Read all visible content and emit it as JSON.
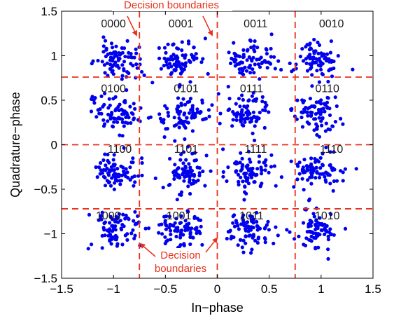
{
  "chart_data": {
    "type": "scatter",
    "xlabel": "In−phase",
    "ylabel": "Quadrature−phase",
    "xlim": [
      -1.5,
      1.5
    ],
    "ylim": [
      -1.5,
      1.5
    ],
    "xticks": [
      -1.5,
      -1,
      -0.5,
      0,
      0.5,
      1,
      1.5
    ],
    "xtick_labels": [
      "−1.5",
      "−1",
      "−0.5",
      "0",
      "0.5",
      "1",
      "1.5"
    ],
    "yticks": [
      -1.5,
      -1,
      -0.5,
      0,
      0.5,
      1,
      1.5
    ],
    "ytick_labels": [
      "−1.5",
      "−1",
      "−0.5",
      "0",
      "0.5",
      "1",
      "1.5"
    ],
    "grid": false,
    "marker_color": "#0000ee",
    "boundary_color": "#e8301c",
    "decision_boundaries": {
      "vertical": [
        -0.75,
        0,
        0.75
      ],
      "horizontal": [
        -0.72,
        0,
        0.76
      ]
    },
    "symbol_spread": 0.11,
    "points_per_symbol": 80,
    "symbols": [
      {
        "label": "0000",
        "i": -0.95,
        "q": 0.95,
        "label_x": -1.0,
        "label_y": 1.32
      },
      {
        "label": "0001",
        "i": -0.35,
        "q": 0.95,
        "label_x": -0.35,
        "label_y": 1.32
      },
      {
        "label": "0011",
        "i": 0.32,
        "q": 0.95,
        "label_x": 0.37,
        "label_y": 1.32
      },
      {
        "label": "0010",
        "i": 0.97,
        "q": 0.95,
        "label_x": 1.1,
        "label_y": 1.32
      },
      {
        "label": "0100",
        "i": -0.97,
        "q": 0.35,
        "label_x": -1.0,
        "label_y": 0.59
      },
      {
        "label": "0101",
        "i": -0.3,
        "q": 0.35,
        "label_x": -0.3,
        "label_y": 0.59
      },
      {
        "label": "0111",
        "i": 0.28,
        "q": 0.35,
        "label_x": 0.33,
        "label_y": 0.59
      },
      {
        "label": "0110",
        "i": 0.97,
        "q": 0.35,
        "label_x": 1.06,
        "label_y": 0.59
      },
      {
        "label": "1100",
        "i": -0.97,
        "q": -0.3,
        "label_x": -0.94,
        "label_y": -0.09
      },
      {
        "label": "1101",
        "i": -0.3,
        "q": -0.3,
        "label_x": -0.3,
        "label_y": -0.09
      },
      {
        "label": "1111",
        "i": 0.3,
        "q": -0.3,
        "label_x": 0.37,
        "label_y": -0.09
      },
      {
        "label": "1110",
        "i": 0.97,
        "q": -0.3,
        "label_x": 1.1,
        "label_y": -0.09
      },
      {
        "label": "1000",
        "i": -0.95,
        "q": -0.95,
        "label_x": -1.05,
        "label_y": -0.84
      },
      {
        "label": "1001",
        "i": -0.35,
        "q": -0.95,
        "label_x": -0.37,
        "label_y": -0.84
      },
      {
        "label": "1011",
        "i": 0.32,
        "q": -0.95,
        "label_x": 0.33,
        "label_y": -0.84
      },
      {
        "label": "1010",
        "i": 0.97,
        "q": -0.95,
        "label_x": 1.06,
        "label_y": -0.84
      }
    ],
    "annotations": [
      {
        "lines": [
          "Decision boundaries"
        ],
        "color": "#e8301c"
      },
      {
        "lines": [
          "Decision",
          "boundaries"
        ],
        "color": "#e8301c"
      }
    ]
  }
}
